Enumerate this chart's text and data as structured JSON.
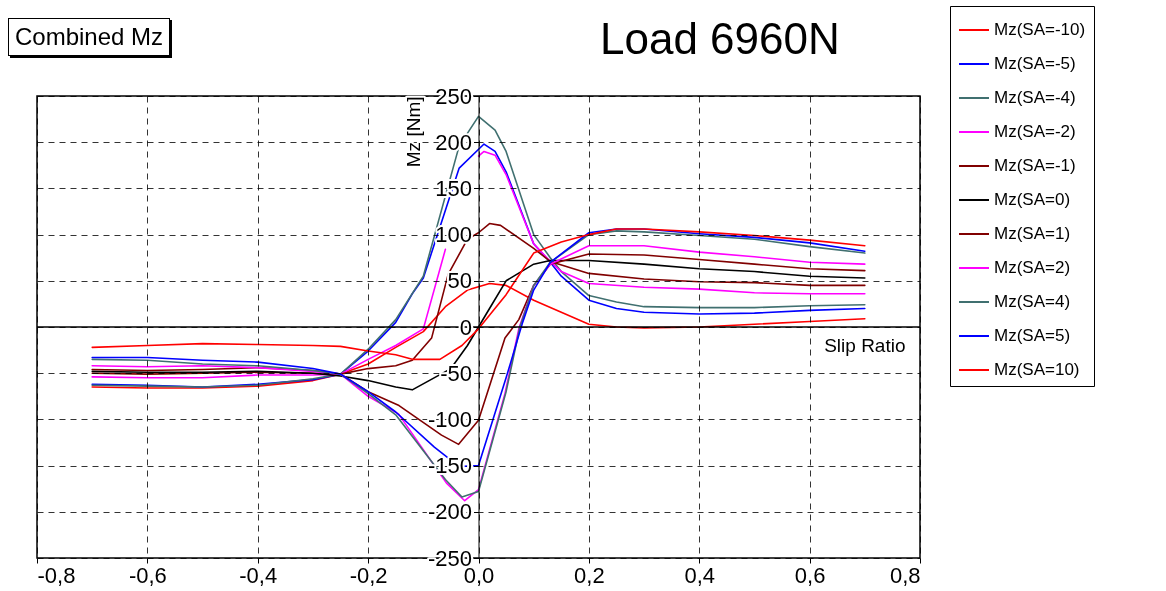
{
  "chart_data": {
    "type": "line",
    "title": "Load 6960N",
    "subtitle": "Combined Mz",
    "xlabel": "Slip Ratio",
    "ylabel": "Mz [Nm]",
    "legend": "top right",
    "grid": true,
    "marker": "none",
    "line_style": "solid",
    "xlim": [
      -0.8,
      0.8
    ],
    "ylim": [
      -250,
      250
    ],
    "xticks": [
      {
        "value": -0.8,
        "label": "-0,8"
      },
      {
        "value": -0.6,
        "label": "-0,6"
      },
      {
        "value": -0.4,
        "label": "-0,4"
      },
      {
        "value": -0.2,
        "label": "-0,2"
      },
      {
        "value": 0,
        "label": "0,0"
      },
      {
        "value": 0.2,
        "label": "0,2"
      },
      {
        "value": 0.4,
        "label": "0,4"
      },
      {
        "value": 0.6,
        "label": "0,6"
      },
      {
        "value": 0.8,
        "label": "0,8"
      }
    ],
    "yticks": [
      -250,
      -200,
      -150,
      -100,
      -50,
      0,
      50,
      100,
      150,
      200,
      250
    ],
    "ref_lines": [
      {
        "axis": "y",
        "value": 0,
        "color": "#000000"
      }
    ],
    "series": [
      {
        "name": "Mz(SA=-10)",
        "color": "#ff0000",
        "x": [
          -0.7,
          -0.6,
          -0.5,
          -0.4,
          -0.3,
          -0.25,
          -0.2,
          -0.15,
          -0.1,
          -0.06,
          -0.02,
          0.02,
          0.05,
          0.1,
          0.15,
          0.2,
          0.25,
          0.3,
          0.4,
          0.5,
          0.6,
          0.7
        ],
        "values": [
          -65,
          -66,
          -66,
          -64,
          -58,
          -51,
          -40,
          -22,
          -5,
          22,
          40,
          47,
          45,
          29,
          16,
          3,
          0,
          -1,
          0,
          3,
          6,
          9
        ]
      },
      {
        "name": "Mz(SA=-5)",
        "color": "#0000ff",
        "x": [
          -0.7,
          -0.6,
          -0.5,
          -0.4,
          -0.3,
          -0.25,
          -0.2,
          -0.15,
          -0.12,
          -0.1,
          -0.035,
          0.01,
          0.03,
          0.05,
          0.1,
          0.13,
          0.15,
          0.2,
          0.25,
          0.3,
          0.4,
          0.5,
          0.6,
          0.7
        ],
        "values": [
          -62,
          -63,
          -65,
          -62,
          -57,
          -51,
          -26,
          5,
          36,
          53,
          172,
          198,
          190,
          168,
          90,
          70,
          55,
          29,
          20,
          16,
          14,
          15,
          18,
          20
        ]
      },
      {
        "name": "Mz(SA=-4)",
        "color": "#407070",
        "x": [
          -0.7,
          -0.6,
          -0.5,
          -0.4,
          -0.3,
          -0.25,
          -0.2,
          -0.15,
          -0.1,
          -0.035,
          0,
          0.03,
          0.05,
          0.1,
          0.13,
          0.15,
          0.2,
          0.25,
          0.3,
          0.4,
          0.5,
          0.6,
          0.7
        ],
        "values": [
          -63,
          -64,
          -65,
          -63,
          -56,
          -51,
          -24,
          8,
          55,
          196,
          228,
          213,
          190,
          100,
          75,
          60,
          34,
          27,
          22,
          21,
          21,
          23,
          24
        ]
      },
      {
        "name": "Mz(SA=-2)",
        "color": "#ff00ff",
        "x": [
          -0.7,
          -0.6,
          -0.5,
          -0.4,
          -0.3,
          -0.25,
          -0.2,
          -0.15,
          -0.1,
          -0.06,
          -0.035,
          0,
          0.01,
          0.03,
          0.05,
          0.1,
          0.13,
          0.15,
          0.2,
          0.3,
          0.4,
          0.5,
          0.6,
          0.7
        ],
        "values": [
          -54,
          -55,
          -55,
          -52,
          -52,
          -51,
          -35,
          -20,
          -2,
          84,
          null,
          185,
          190,
          186,
          165,
          90,
          71,
          60,
          47,
          43,
          41,
          37,
          36,
          36
        ]
      },
      {
        "name": "Mz(SA=-1)",
        "color": "#800000",
        "x": [
          -0.7,
          -0.6,
          -0.5,
          -0.4,
          -0.3,
          -0.25,
          -0.2,
          -0.15,
          -0.12,
          -0.085,
          -0.055,
          -0.02,
          0,
          0.02,
          0.04,
          0.1,
          0.13,
          0.2,
          0.3,
          0.4,
          0.5,
          0.6,
          0.7
        ],
        "values": [
          -50,
          -51,
          -50,
          -49,
          -50,
          -51,
          -45,
          -42,
          -36,
          -12,
          57,
          95,
          102,
          112,
          110,
          85,
          71,
          58,
          52,
          49,
          48,
          45,
          45
        ]
      },
      {
        "name": "Mz(SA=0)",
        "color": "#000000",
        "x": [
          -0.7,
          -0.6,
          -0.5,
          -0.4,
          -0.3,
          -0.25,
          -0.2,
          -0.15,
          -0.12,
          -0.05,
          -0.02,
          0,
          0.02,
          0.05,
          0.1,
          0.13,
          0.2,
          0.3,
          0.4,
          0.5,
          0.6,
          0.7
        ],
        "values": [
          -48,
          -49,
          -49,
          -48,
          -50,
          -53,
          -58,
          -65,
          -68,
          -45,
          -20,
          0,
          20,
          50,
          68,
          72,
          72,
          68,
          63,
          60,
          55,
          53
        ]
      },
      {
        "name": "Mz(SA=1)",
        "color": "#800000",
        "x": [
          -0.7,
          -0.6,
          -0.5,
          -0.4,
          -0.3,
          -0.25,
          -0.2,
          -0.144,
          -0.067,
          -0.036,
          0,
          0.048,
          0.073,
          0.1,
          0.13,
          0.2,
          0.3,
          0.4,
          0.5,
          0.6,
          0.7
        ],
        "values": [
          -46,
          -47,
          -46,
          -44,
          -47,
          -51,
          -70,
          -85,
          -117,
          -127,
          -101,
          -12,
          8,
          45,
          68,
          79,
          78,
          73,
          68,
          63,
          61
        ]
      },
      {
        "name": "Mz(SA=2)",
        "color": "#ff00ff",
        "x": [
          -0.7,
          -0.6,
          -0.5,
          -0.4,
          -0.3,
          -0.25,
          -0.2,
          -0.145,
          -0.058,
          -0.025,
          0,
          0.048,
          0.073,
          0.1,
          0.13,
          0.2,
          0.3,
          0.4,
          0.5,
          0.6,
          0.7
        ],
        "values": [
          -42,
          -43,
          -42,
          -44,
          -48,
          -51,
          -75,
          -94,
          -169,
          -188,
          -176,
          -72,
          -2,
          45,
          68,
          88,
          88,
          81,
          76,
          70,
          68
        ]
      },
      {
        "name": "Mz(SA=4)",
        "color": "#407070",
        "x": [
          -0.7,
          -0.6,
          -0.5,
          -0.4,
          -0.3,
          -0.25,
          -0.2,
          -0.15,
          -0.06,
          -0.03,
          0,
          0.05,
          0.075,
          0.1,
          0.13,
          0.2,
          0.25,
          0.3,
          0.4,
          0.5,
          0.6,
          0.7
        ],
        "values": [
          -35,
          -36,
          -40,
          -42,
          -47,
          -51,
          -72,
          -95,
          -165,
          -184,
          -178,
          -70,
          0,
          45,
          70,
          100,
          104,
          103,
          99,
          95,
          87,
          80
        ]
      },
      {
        "name": "Mz(SA=5)",
        "color": "#0000ff",
        "x": [
          -0.7,
          -0.6,
          -0.5,
          -0.4,
          -0.3,
          -0.25,
          -0.2,
          -0.15,
          -0.08,
          -0.035,
          0,
          0.05,
          0.08,
          0.1,
          0.13,
          0.2,
          0.25,
          0.3,
          0.4,
          0.5,
          0.6,
          0.7
        ],
        "values": [
          -33,
          -33,
          -36,
          -38,
          -45,
          -51,
          -70,
          -92,
          -130,
          -151,
          -150,
          -55,
          5,
          40,
          70,
          102,
          106,
          106,
          101,
          97,
          91,
          82
        ]
      },
      {
        "name": "Mz(SA=10)",
        "color": "#ff0000",
        "x": [
          -0.7,
          -0.6,
          -0.5,
          -0.4,
          -0.3,
          -0.25,
          -0.2,
          -0.15,
          -0.12,
          -0.07,
          -0.03,
          0,
          0.05,
          0.1,
          0.15,
          0.2,
          0.25,
          0.3,
          0.4,
          0.5,
          0.6,
          0.7
        ],
        "values": [
          -22,
          -20,
          -18,
          -19,
          -20,
          -21,
          -26,
          -30,
          -35,
          -35,
          -20,
          -2,
          35,
          80,
          92,
          100,
          106,
          106,
          103,
          99,
          94,
          88
        ]
      }
    ]
  }
}
